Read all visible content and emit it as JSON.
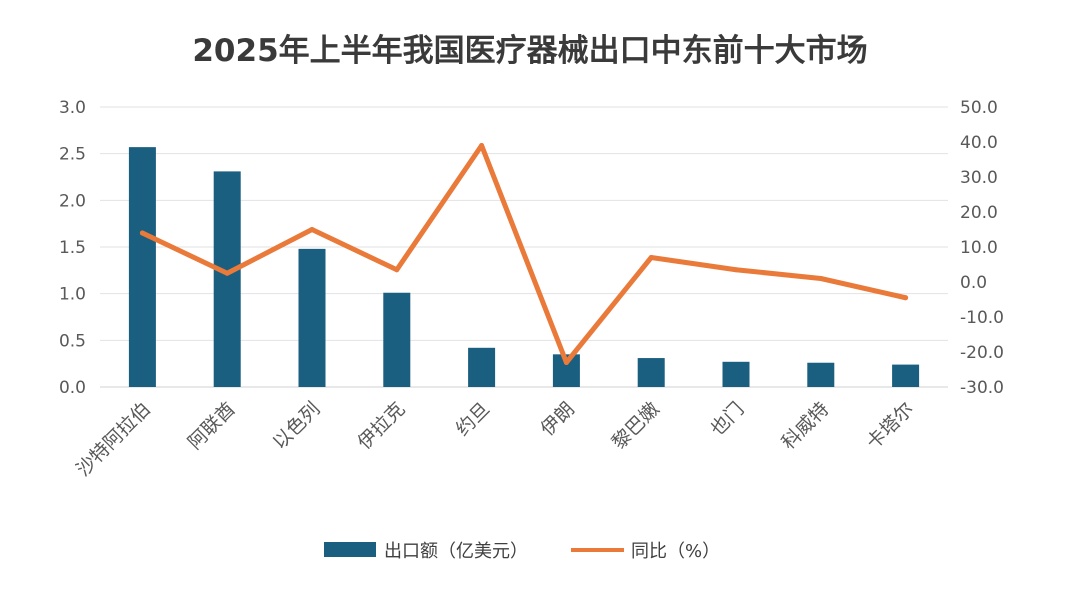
{
  "chart_data": {
    "type": "bar+line",
    "title": "2025年上半年我国医疗器械出口中东前十大市场",
    "categories": [
      "沙特阿拉伯",
      "阿联酋",
      "以色列",
      "伊拉克",
      "约旦",
      "伊朗",
      "黎巴嫩",
      "也门",
      "科威特",
      "卡塔尔"
    ],
    "series": [
      {
        "name": "出口额（亿美元）",
        "type": "bar",
        "axis": "left",
        "color": "#1a5e80",
        "values": [
          2.57,
          2.31,
          1.48,
          1.01,
          0.42,
          0.35,
          0.31,
          0.27,
          0.26,
          0.24
        ]
      },
      {
        "name": "同比（%）",
        "type": "line",
        "axis": "right",
        "color": "#e97a3a",
        "values": [
          14.0,
          2.5,
          15.0,
          3.5,
          39.0,
          -23.0,
          7.0,
          3.5,
          1.0,
          -4.5
        ]
      }
    ],
    "y_left": {
      "min": 0,
      "max": 3,
      "step": 0.5,
      "ticks": [
        "0.0",
        "0.5",
        "1.0",
        "1.5",
        "2.0",
        "2.5",
        "3.0"
      ]
    },
    "y_right": {
      "min": -30,
      "max": 50,
      "step": 10,
      "ticks": [
        "-30.0",
        "-20.0",
        "-10.0",
        "0.0",
        "10.0",
        "20.0",
        "30.0",
        "40.0",
        "50.0"
      ]
    },
    "grid": true,
    "legend_position": "bottom"
  }
}
